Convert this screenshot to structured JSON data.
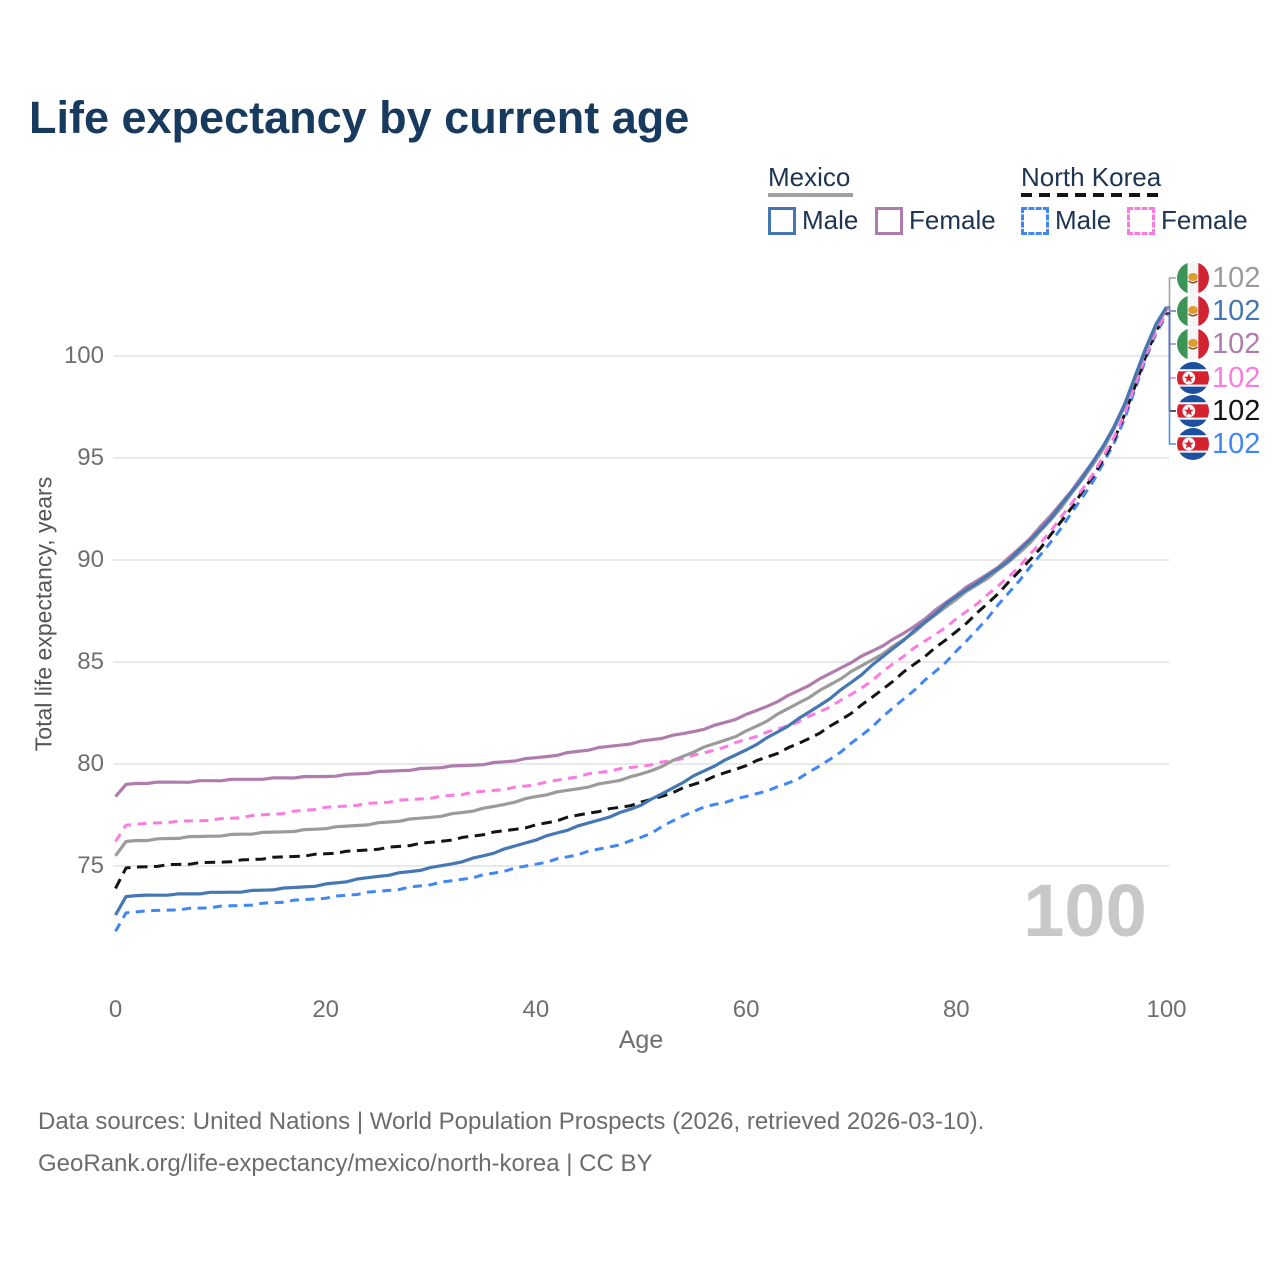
{
  "title": "Life expectancy by current age",
  "legend": {
    "groups": [
      {
        "label": "Mexico",
        "line_style": "solid",
        "underline_color": "#a0a0a0",
        "items": [
          {
            "label": "Male",
            "color": "#4577b3",
            "dashed": false
          },
          {
            "label": "Female",
            "color": "#b07cae",
            "dashed": false
          }
        ]
      },
      {
        "label": "North Korea",
        "line_style": "dashed",
        "underline_color": "#141414",
        "items": [
          {
            "label": "Male",
            "color": "#4187f2",
            "dashed": true
          },
          {
            "label": "Female",
            "color": "#fb7ce1",
            "dashed": true
          }
        ]
      }
    ]
  },
  "chart_data": {
    "type": "line",
    "title": "Life expectancy by current age",
    "xlabel": "Age",
    "ylabel": "Total life expectancy, years",
    "x_ticks": [
      0,
      20,
      40,
      60,
      80,
      100
    ],
    "y_ticks": [
      75,
      80,
      85,
      90,
      95,
      100
    ],
    "xlim": [
      0,
      100
    ],
    "ylim": [
      71,
      103
    ],
    "grid": "horizontal",
    "legend_position": "top-right",
    "x": [
      0,
      1,
      2,
      5,
      10,
      15,
      20,
      25,
      30,
      35,
      40,
      45,
      50,
      55,
      60,
      65,
      70,
      75,
      80,
      85,
      90,
      95,
      100
    ],
    "series": [
      {
        "name": "Mexico Total",
        "country": "mexico",
        "color": "#9b9b9b",
        "dashed": false,
        "values": [
          75.5,
          76.2,
          76.25,
          76.35,
          76.5,
          76.65,
          76.85,
          77.1,
          77.4,
          77.8,
          78.4,
          78.9,
          79.5,
          80.6,
          81.6,
          83.0,
          84.5,
          86.1,
          88.1,
          89.9,
          92.6,
          96.4,
          102.3
        ],
        "end_label": "102"
      },
      {
        "name": "Mexico Male",
        "country": "mexico",
        "color": "#4577b3",
        "dashed": false,
        "values": [
          72.6,
          73.5,
          73.55,
          73.6,
          73.7,
          73.85,
          74.1,
          74.5,
          74.9,
          75.5,
          76.3,
          77.1,
          78.0,
          79.4,
          80.7,
          82.2,
          84.0,
          86.1,
          88.2,
          90.0,
          92.7,
          96.5,
          102.4
        ],
        "end_label": "102"
      },
      {
        "name": "Mexico Female",
        "country": "mexico",
        "color": "#b07cae",
        "dashed": false,
        "values": [
          78.4,
          79.0,
          79.05,
          79.1,
          79.2,
          79.3,
          79.4,
          79.6,
          79.8,
          80.0,
          80.3,
          80.7,
          81.1,
          81.6,
          82.4,
          83.6,
          85.0,
          86.4,
          88.3,
          90.1,
          92.8,
          96.5,
          102.3
        ],
        "end_label": "102"
      },
      {
        "name": "North Korea Female",
        "country": "north-korea",
        "color": "#fb7ce1",
        "dashed": true,
        "values": [
          76.2,
          77.0,
          77.05,
          77.15,
          77.3,
          77.55,
          77.85,
          78.1,
          78.35,
          78.65,
          79.0,
          79.5,
          79.9,
          80.4,
          81.2,
          82.1,
          83.4,
          85.3,
          87.1,
          89.2,
          92.1,
          96.0,
          102.1
        ],
        "end_label": "102"
      },
      {
        "name": "North Korea Total",
        "country": "north-korea",
        "color": "#141414",
        "dashed": true,
        "values": [
          73.9,
          74.9,
          74.95,
          75.05,
          75.2,
          75.4,
          75.6,
          75.85,
          76.15,
          76.55,
          77.0,
          77.6,
          78.1,
          79.0,
          79.95,
          81.0,
          82.5,
          84.5,
          86.5,
          88.9,
          91.9,
          95.9,
          102.1
        ],
        "end_label": "102"
      },
      {
        "name": "North Korea Male",
        "country": "north-korea",
        "color": "#4187f2",
        "dashed": true,
        "values": [
          71.8,
          72.7,
          72.75,
          72.85,
          73.0,
          73.2,
          73.45,
          73.75,
          74.1,
          74.55,
          75.1,
          75.7,
          76.4,
          77.7,
          78.4,
          79.3,
          81.0,
          83.2,
          85.5,
          88.4,
          91.6,
          95.7,
          102.0
        ],
        "end_label": "102"
      }
    ]
  },
  "watermark": "100",
  "footer": {
    "line1": "Data sources: United Nations | World Population Prospects (2026, retrieved 2026-03-10).",
    "line2": "GeoRank.org/life-expectancy/mexico/north-korea | CC BY"
  }
}
